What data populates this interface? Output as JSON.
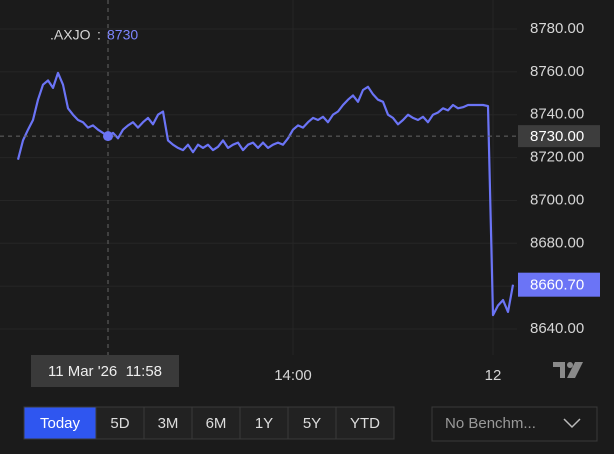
{
  "chart_data": {
    "type": "line",
    "legend_separator": ":",
    "series": [
      {
        "name": ".AXJO",
        "color": "#6b74f6",
        "values": [
          8719,
          8728,
          8733,
          8737.5,
          8747,
          8754,
          8756,
          8752.5,
          8759.5,
          8754,
          8743,
          8740,
          8737.5,
          8736.5,
          8734,
          8735,
          8733,
          8731.5,
          8730,
          8731.5,
          8729,
          8733,
          8735,
          8736.5,
          8734,
          8736.5,
          8738.5,
          8735.5,
          8740,
          8741.5,
          8728,
          8726,
          8724.5,
          8723.5,
          8726,
          8722.5,
          8726,
          8724.5,
          8726,
          8723.5,
          8725,
          8728,
          8724.5,
          8726,
          8727,
          8723.5,
          8726,
          8727,
          8724.5,
          8727,
          8724.5,
          8726,
          8727,
          8726,
          8729,
          8733,
          8735,
          8734,
          8736.5,
          8738.5,
          8737.5,
          8739,
          8736.5,
          8740,
          8741.5,
          8744.5,
          8747,
          8749,
          8746,
          8751.5,
          8753,
          8749.5,
          8747,
          8746,
          8740,
          8738.5,
          8735.5,
          8737.5,
          8740,
          8738.5,
          8737.5,
          8739,
          8736.5,
          8740,
          8741,
          8743,
          8742,
          8744.5,
          8743,
          8743.5,
          8744.5,
          8744.5,
          8744.5,
          8744.5,
          8744,
          8646.5,
          8651,
          8653.5,
          8648,
          8660.7
        ]
      }
    ],
    "categories": [
      null,
      null,
      null,
      null,
      null,
      null,
      null,
      null,
      null,
      null,
      null,
      null,
      null,
      null,
      null,
      null,
      null,
      null,
      null,
      null,
      null,
      null,
      null,
      null,
      null,
      null,
      null,
      null,
      null,
      null,
      null,
      null,
      null,
      null,
      null,
      null,
      null,
      null,
      null,
      null,
      null,
      null,
      null,
      null,
      null,
      null,
      null,
      null,
      null,
      null,
      null,
      null,
      null,
      null,
      null,
      "14:00",
      null,
      null,
      null,
      null,
      null,
      null,
      null,
      null,
      null,
      null,
      null,
      null,
      null,
      null,
      null,
      null,
      null,
      null,
      null,
      null,
      null,
      null,
      null,
      null,
      null,
      null,
      null,
      null,
      null,
      null,
      null,
      null,
      null,
      null,
      null,
      null,
      null,
      null,
      null,
      "12",
      null,
      null,
      null,
      null
    ],
    "ylim": [
      8627.9,
      8793.5
    ],
    "yticks": [
      {
        "value": 8640,
        "label": "8640.00"
      },
      {
        "value": 8660,
        "label": "8660.00"
      },
      {
        "value": 8680,
        "label": "8680.00"
      },
      {
        "value": 8700,
        "label": "8700.00"
      },
      {
        "value": 8720,
        "label": "8720.00"
      },
      {
        "value": 8740,
        "label": "8740.00"
      },
      {
        "value": 8760,
        "label": "8760.00"
      },
      {
        "value": 8780,
        "label": "8780.00"
      }
    ],
    "grid": true,
    "crosshair": {
      "index": 18,
      "value": 8730,
      "value_label": "8730.00",
      "x_label": "11 Mar '26  11:58"
    },
    "last_value": 8660.7,
    "last_value_label": "8660.70"
  },
  "controls": {
    "ranges": [
      "Today",
      "5D",
      "3M",
      "6M",
      "1Y",
      "5Y",
      "YTD"
    ],
    "selected": 0,
    "benchmark": "No Benchm..."
  }
}
